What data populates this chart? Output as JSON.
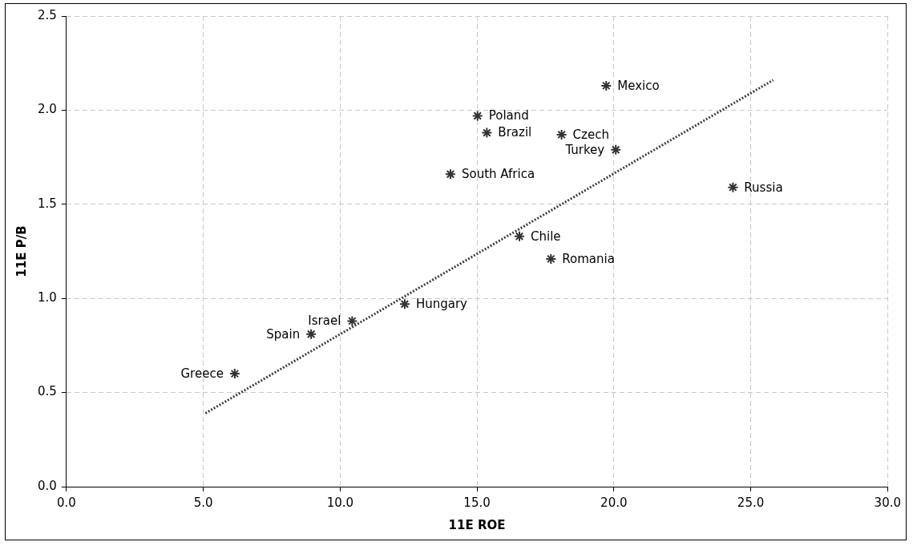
{
  "chart_data": {
    "type": "scatter",
    "xlabel": "11E ROE",
    "ylabel": "11E P/B",
    "xlim": [
      0,
      30
    ],
    "ylim": [
      0,
      2.5
    ],
    "xticks": [
      {
        "value": 0,
        "label": "0.0"
      },
      {
        "value": 5,
        "label": "5.0"
      },
      {
        "value": 10,
        "label": "10.0"
      },
      {
        "value": 15,
        "label": "15.0"
      },
      {
        "value": 20,
        "label": "20.0"
      },
      {
        "value": 25,
        "label": "25.0"
      },
      {
        "value": 30,
        "label": "30.0"
      }
    ],
    "yticks": [
      {
        "value": 0,
        "label": "0.0"
      },
      {
        "value": 0.5,
        "label": "0.5"
      },
      {
        "value": 1,
        "label": "1.0"
      },
      {
        "value": 1.5,
        "label": "1.5"
      },
      {
        "value": 2,
        "label": "2.0"
      },
      {
        "value": 2.5,
        "label": "2.5"
      }
    ],
    "grid": true,
    "legend": false,
    "marker": "cross",
    "series": [
      {
        "color": "#333333",
        "x": [
          6.15,
          8.94,
          10.44,
          12.36,
          14.03,
          15.02,
          15.36,
          16.55,
          17.7,
          18.09,
          19.72,
          20.07,
          24.35
        ],
        "values": [
          0.6,
          0.81,
          0.88,
          0.97,
          1.66,
          1.97,
          1.88,
          1.33,
          1.21,
          1.87,
          2.13,
          1.79,
          1.59
        ]
      },
      {
        "type": "line",
        "color": "#404040",
        "line_style": "dotted",
        "marker": "none",
        "x": [
          5.08,
          25.82
        ],
        "values": [
          0.39,
          2.16
        ]
      }
    ],
    "annotations": [
      {
        "text": "Greece",
        "x": 6.15,
        "y": 0.6
      },
      {
        "text": "Spain",
        "x": 8.94,
        "y": 0.81
      },
      {
        "text": "Israel",
        "x": 10.44,
        "y": 0.88
      },
      {
        "text": "Hungary",
        "x": 12.36,
        "y": 0.97
      },
      {
        "text": "South Africa",
        "x": 14.03,
        "y": 1.66
      },
      {
        "text": "Poland",
        "x": 15.02,
        "y": 1.97
      },
      {
        "text": "Brazil",
        "x": 15.36,
        "y": 1.88
      },
      {
        "text": "Chile",
        "x": 16.55,
        "y": 1.33
      },
      {
        "text": "Romania",
        "x": 17.7,
        "y": 1.21
      },
      {
        "text": "Czech",
        "x": 18.09,
        "y": 1.87
      },
      {
        "text": "Mexico",
        "x": 19.72,
        "y": 2.13
      },
      {
        "text": "Turkey",
        "x": 20.07,
        "y": 1.79
      },
      {
        "text": "Russia",
        "x": 24.35,
        "y": 1.59
      }
    ]
  }
}
